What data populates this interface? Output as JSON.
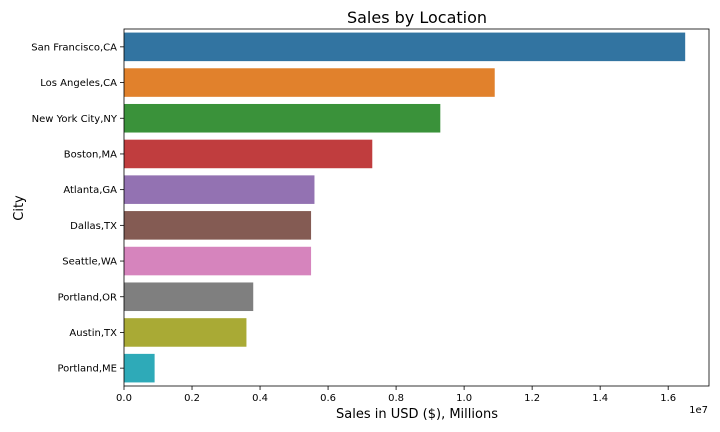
{
  "chart_data": {
    "type": "bar",
    "orientation": "horizontal",
    "title": "Sales by Location",
    "xlabel": "Sales in USD ($), Millions",
    "ylabel": "City",
    "x_offset_label": "1e7",
    "xlim": [
      0,
      1.72
    ],
    "x_ticks": [
      0.0,
      0.2,
      0.4,
      0.6,
      0.8,
      1.0,
      1.2,
      1.4,
      1.6
    ],
    "x_tick_labels": [
      "0.0",
      "0.2",
      "0.4",
      "0.6",
      "0.8",
      "1.0",
      "1.2",
      "1.4",
      "1.6"
    ],
    "grid": false,
    "categories": [
      "San Francisco,CA",
      "Los Angeles,CA",
      "New York City,NY",
      "Boston,MA",
      "Atlanta,GA",
      "Dallas,TX",
      "Seattle,WA",
      "Portland,OR",
      "Austin,TX",
      "Portland,ME"
    ],
    "values": [
      1.65,
      1.09,
      0.93,
      0.73,
      0.56,
      0.55,
      0.55,
      0.38,
      0.36,
      0.09
    ],
    "colors": [
      "#3274a1",
      "#e1812c",
      "#3a923a",
      "#c03d3e",
      "#9372b2",
      "#845b53",
      "#d684bd",
      "#7f7f7f",
      "#a9aa35",
      "#2eaab8"
    ]
  }
}
